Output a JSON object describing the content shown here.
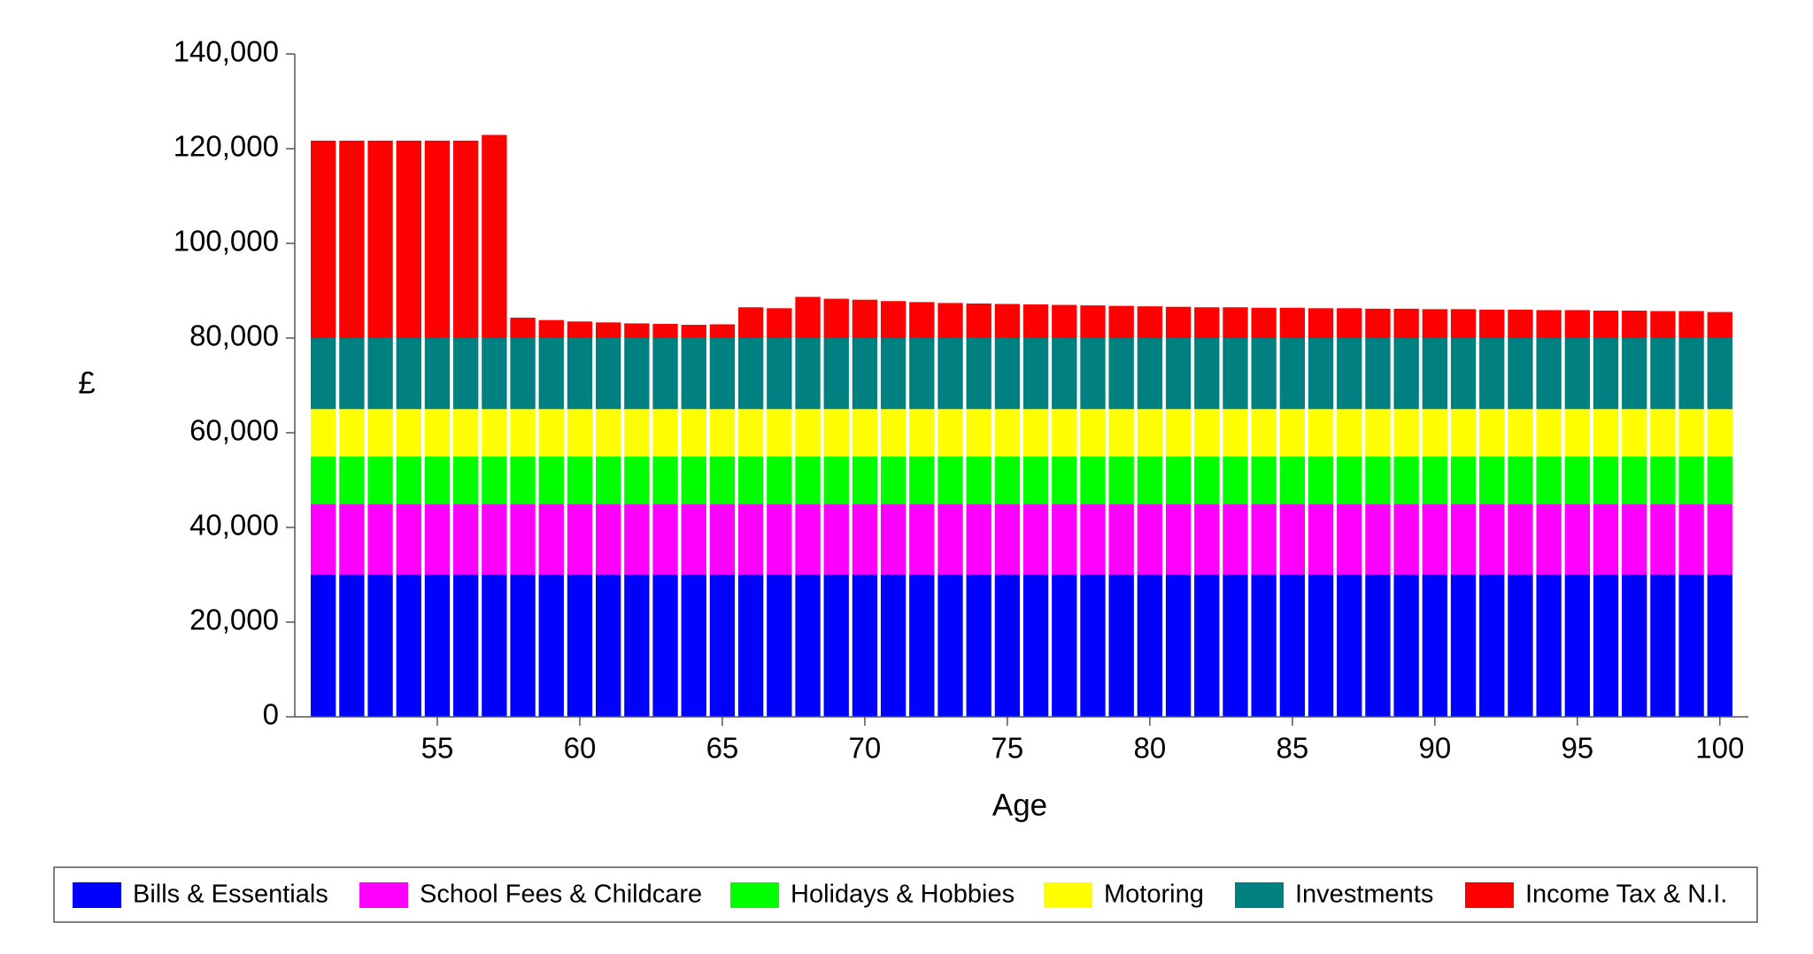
{
  "chart_data": {
    "type": "stacked_bar",
    "x_label": "Age",
    "y_label": "£",
    "x": [
      51,
      52,
      53,
      54,
      55,
      56,
      57,
      58,
      59,
      60,
      61,
      62,
      63,
      64,
      65,
      66,
      67,
      68,
      69,
      70,
      71,
      72,
      73,
      74,
      75,
      76,
      77,
      78,
      79,
      80,
      81,
      82,
      83,
      84,
      85,
      86,
      87,
      88,
      89,
      90,
      91,
      92,
      93,
      94,
      95,
      96,
      97,
      98,
      99,
      100
    ],
    "xlim": [
      50,
      101
    ],
    "xticks": [
      55,
      60,
      65,
      70,
      75,
      80,
      85,
      90,
      95,
      100
    ],
    "ylim": [
      0,
      140000
    ],
    "yticks": [
      0,
      {
        "value": 20000,
        "label": "20,000"
      },
      {
        "value": 40000,
        "label": "40,000"
      },
      {
        "value": 60000,
        "label": "60,000"
      },
      {
        "value": 80000,
        "label": "80,000"
      },
      {
        "value": 100000,
        "label": "100,000"
      },
      {
        "value": 120000,
        "label": "120,000"
      },
      {
        "value": 140000,
        "label": "140,000"
      }
    ],
    "legend_position": "bottom",
    "series": [
      {
        "name": "Bills & Essentials",
        "color": "#0000ff",
        "values": [
          30000,
          30000,
          30000,
          30000,
          30000,
          30000,
          30000,
          30000,
          30000,
          30000,
          30000,
          30000,
          30000,
          30000,
          30000,
          30000,
          30000,
          30000,
          30000,
          30000,
          30000,
          30000,
          30000,
          30000,
          30000,
          30000,
          30000,
          30000,
          30000,
          30000,
          30000,
          30000,
          30000,
          30000,
          30000,
          30000,
          30000,
          30000,
          30000,
          30000,
          30000,
          30000,
          30000,
          30000,
          30000,
          30000,
          30000,
          30000,
          30000,
          30000
        ]
      },
      {
        "name": "School Fees & Childcare",
        "color": "#ff00ff",
        "values": [
          15000,
          15000,
          15000,
          15000,
          15000,
          15000,
          15000,
          15000,
          15000,
          15000,
          15000,
          15000,
          15000,
          15000,
          15000,
          15000,
          15000,
          15000,
          15000,
          15000,
          15000,
          15000,
          15000,
          15000,
          15000,
          15000,
          15000,
          15000,
          15000,
          15000,
          15000,
          15000,
          15000,
          15000,
          15000,
          15000,
          15000,
          15000,
          15000,
          15000,
          15000,
          15000,
          15000,
          15000,
          15000,
          15000,
          15000,
          15000,
          15000,
          15000
        ]
      },
      {
        "name": "Holidays & Hobbies",
        "color": "#00ff00",
        "values": [
          10000,
          10000,
          10000,
          10000,
          10000,
          10000,
          10000,
          10000,
          10000,
          10000,
          10000,
          10000,
          10000,
          10000,
          10000,
          10000,
          10000,
          10000,
          10000,
          10000,
          10000,
          10000,
          10000,
          10000,
          10000,
          10000,
          10000,
          10000,
          10000,
          10000,
          10000,
          10000,
          10000,
          10000,
          10000,
          10000,
          10000,
          10000,
          10000,
          10000,
          10000,
          10000,
          10000,
          10000,
          10000,
          10000,
          10000,
          10000,
          10000,
          10000
        ]
      },
      {
        "name": "Motoring",
        "color": "#ffff00",
        "values": [
          10000,
          10000,
          10000,
          10000,
          10000,
          10000,
          10000,
          10000,
          10000,
          10000,
          10000,
          10000,
          10000,
          10000,
          10000,
          10000,
          10000,
          10000,
          10000,
          10000,
          10000,
          10000,
          10000,
          10000,
          10000,
          10000,
          10000,
          10000,
          10000,
          10000,
          10000,
          10000,
          10000,
          10000,
          10000,
          10000,
          10000,
          10000,
          10000,
          10000,
          10000,
          10000,
          10000,
          10000,
          10000,
          10000,
          10000,
          10000,
          10000,
          10000
        ]
      },
      {
        "name": "Investments",
        "color": "#008080",
        "values": [
          15000,
          15000,
          15000,
          15000,
          15000,
          15000,
          15000,
          15000,
          15000,
          15000,
          15000,
          15000,
          15000,
          15000,
          15000,
          15000,
          15000,
          15000,
          15000,
          15000,
          15000,
          15000,
          15000,
          15000,
          15000,
          15000,
          15000,
          15000,
          15000,
          15000,
          15000,
          15000,
          15000,
          15000,
          15000,
          15000,
          15000,
          15000,
          15000,
          15000,
          15000,
          15000,
          15000,
          15000,
          15000,
          15000,
          15000,
          15000,
          15000,
          15000
        ]
      },
      {
        "name": "Income Tax & N.I.",
        "color": "#ff0000",
        "values": [
          41700,
          41700,
          41700,
          41700,
          41700,
          41700,
          42900,
          4300,
          3800,
          3500,
          3300,
          3100,
          3000,
          2800,
          2900,
          6500,
          6300,
          8700,
          8300,
          8100,
          7800,
          7600,
          7400,
          7300,
          7200,
          7100,
          7000,
          6900,
          6800,
          6700,
          6600,
          6500,
          6500,
          6400,
          6400,
          6300,
          6300,
          6200,
          6200,
          6100,
          6100,
          6000,
          6000,
          5900,
          5900,
          5800,
          5800,
          5700,
          5700,
          5500
        ]
      }
    ]
  }
}
